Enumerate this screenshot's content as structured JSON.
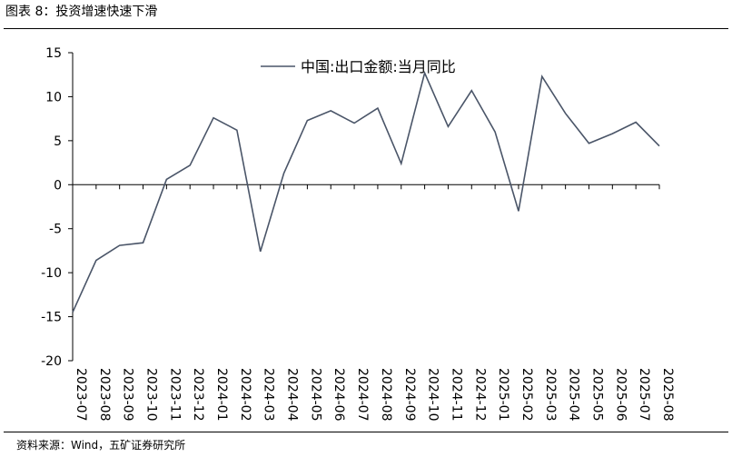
{
  "figure": {
    "title": "图表 8：投资增速快速下滑",
    "source": "资料来源：Wind，五矿证券研究所"
  },
  "colors": {
    "series_line": "#4a5568",
    "axis": "#000000",
    "rule": "#000000"
  },
  "chart_data": {
    "type": "line",
    "title": "",
    "xlabel": "",
    "ylabel": "",
    "ylim": [
      -20,
      15
    ],
    "yticks": [
      15,
      10,
      5,
      0,
      -5,
      -10,
      -15,
      -20
    ],
    "grid": false,
    "legend_position": "top-center",
    "categories": [
      "2023-07",
      "2023-08",
      "2023-09",
      "2023-10",
      "2023-11",
      "2023-12",
      "2024-01",
      "2024-02",
      "2024-03",
      "2024-04",
      "2024-05",
      "2024-06",
      "2024-07",
      "2024-08",
      "2024-09",
      "2024-10",
      "2024-11",
      "2024-12",
      "2025-01",
      "2025-02",
      "2025-03",
      "2025-04",
      "2025-05",
      "2025-06",
      "2025-07",
      "2025-08"
    ],
    "series": [
      {
        "name": "中国:出口金额:当月同比",
        "values": [
          -14.5,
          -8.6,
          -6.9,
          -6.6,
          0.6,
          2.2,
          7.6,
          6.2,
          -7.6,
          1.3,
          7.3,
          8.4,
          7.0,
          8.7,
          2.4,
          12.7,
          6.6,
          10.7,
          6.0,
          -3.0,
          12.3,
          8.1,
          4.7,
          5.8,
          7.1,
          4.4
        ]
      }
    ]
  }
}
